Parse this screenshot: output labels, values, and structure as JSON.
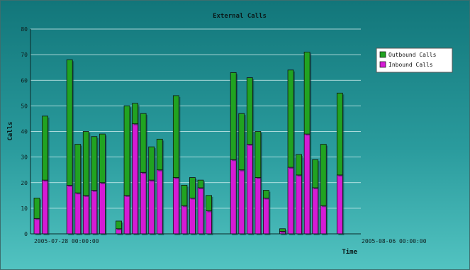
{
  "chart_data": {
    "type": "bar",
    "stacked": true,
    "title": "External Calls",
    "xlabel": "Time",
    "ylabel": "Calls",
    "ylim": [
      0,
      80
    ],
    "yticks": [
      0,
      10,
      20,
      30,
      40,
      50,
      60,
      70,
      80
    ],
    "grid": true,
    "legend_position": "right",
    "x_tick_labels": [
      {
        "label": "2005-07-28 00:00:00",
        "index": 0
      },
      {
        "label": "2005-08-06 00:00:00",
        "index": 40
      }
    ],
    "series": [
      {
        "name": "Inbound Calls",
        "color": "#d51bd5",
        "values": [
          6,
          21,
          null,
          null,
          19,
          16,
          15,
          17,
          20,
          null,
          2,
          15,
          43,
          24,
          21,
          25,
          null,
          22,
          11,
          14,
          18,
          9,
          null,
          null,
          29,
          25,
          35,
          22,
          14,
          null,
          1,
          26,
          23,
          39,
          18,
          11,
          null,
          23
        ]
      },
      {
        "name": "Outbound Calls",
        "color": "#21a321",
        "values": [
          8,
          25,
          null,
          null,
          49,
          19,
          25,
          21,
          19,
          null,
          3,
          35,
          8,
          23,
          13,
          12,
          null,
          32,
          8,
          8,
          3,
          6,
          null,
          null,
          34,
          22,
          26,
          18,
          3,
          null,
          1,
          38,
          8,
          32,
          11,
          24,
          null,
          32
        ]
      }
    ]
  }
}
